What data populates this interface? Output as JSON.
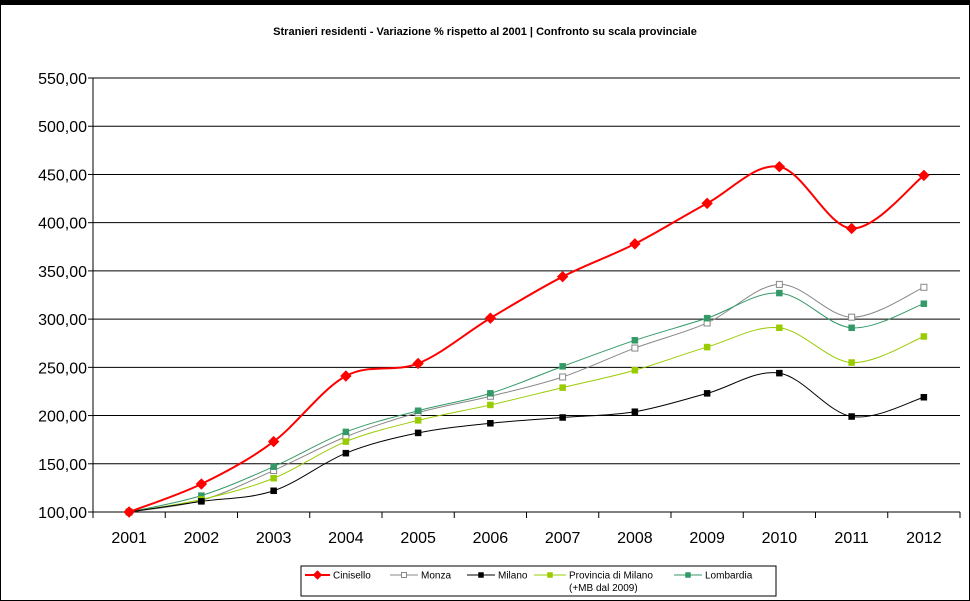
{
  "chart_data": {
    "type": "line",
    "title": "Stranieri residenti - Variazione % rispetto al 2001 | Confronto su scala provinciale",
    "xlabel": "",
    "ylabel": "",
    "categories": [
      "2001",
      "2002",
      "2003",
      "2004",
      "2005",
      "2006",
      "2007",
      "2008",
      "2009",
      "2010",
      "2011",
      "2012"
    ],
    "ylim": [
      100,
      550
    ],
    "yticks": [
      "100,00",
      "150,00",
      "200,00",
      "250,00",
      "300,00",
      "350,00",
      "400,00",
      "450,00",
      "500,00",
      "550,00"
    ],
    "grid": true,
    "legend_position": "bottom",
    "series": [
      {
        "name": "Cinisello",
        "color": "#ff0000",
        "marker": "diamond",
        "width": 2,
        "values": [
          100,
          129,
          173,
          241,
          254,
          301,
          344,
          378,
          420,
          458,
          394,
          449
        ]
      },
      {
        "name": "Monza",
        "color": "#888888",
        "marker": "square-open",
        "width": 1,
        "values": [
          100,
          112,
          143,
          178,
          203,
          220,
          240,
          270,
          296,
          336,
          302,
          333
        ]
      },
      {
        "name": "Milano",
        "color": "#000000",
        "marker": "square",
        "width": 1,
        "values": [
          100,
          111,
          122,
          161,
          182,
          192,
          198,
          204,
          223,
          244,
          199,
          219
        ]
      },
      {
        "name": "Provincia di Milano",
        "name_line2": "(+MB dal 2009)",
        "color": "#99cc00",
        "marker": "square",
        "width": 1,
        "values": [
          100,
          113,
          135,
          173,
          195,
          211,
          229,
          247,
          271,
          291,
          255,
          282
        ]
      },
      {
        "name": "Lombardia",
        "color": "#339966",
        "marker": "square",
        "width": 1,
        "values": [
          100,
          117,
          147,
          183,
          205,
          223,
          251,
          278,
          301,
          327,
          291,
          316
        ]
      }
    ]
  }
}
